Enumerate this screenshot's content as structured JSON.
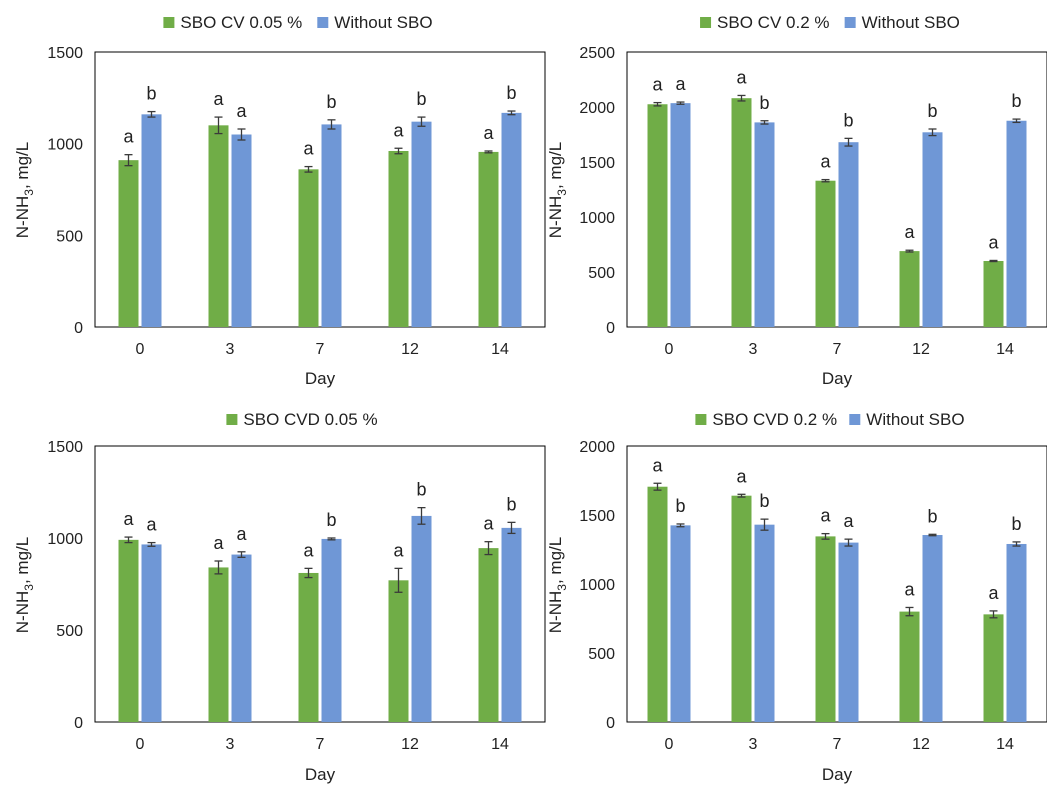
{
  "colors": {
    "green": "#70AD47",
    "blue": "#6F97D6",
    "error_bar": "#3a3a3a",
    "axis": "#000000",
    "text": "#222222"
  },
  "chart_data": [
    {
      "type": "bar",
      "legend_position": "top",
      "categories": [
        "0",
        "3",
        "7",
        "12",
        "14"
      ],
      "xlabel": "Day",
      "ylabel": "N-NH3, mg/L",
      "ylim": [
        0,
        1500
      ],
      "yticks": [
        0,
        500,
        1000,
        1500
      ],
      "grid": false,
      "series": [
        {
          "name": "SBO CV 0.05 %",
          "color": "green",
          "values": [
            910,
            1100,
            860,
            960,
            955
          ],
          "errors": [
            30,
            45,
            15,
            15,
            5
          ],
          "labels": [
            "a",
            "a",
            "a",
            "a",
            "a"
          ]
        },
        {
          "name": "Without SBO",
          "color": "blue",
          "values": [
            1160,
            1050,
            1105,
            1120,
            1168
          ],
          "errors": [
            15,
            30,
            25,
            25,
            10
          ],
          "labels": [
            "b",
            "a",
            "b",
            "b",
            "b"
          ]
        }
      ]
    },
    {
      "type": "bar",
      "legend_position": "top",
      "categories": [
        "0",
        "3",
        "7",
        "12",
        "14"
      ],
      "xlabel": "Day",
      "ylabel": "N-NH3, mg/L",
      "ylim": [
        0,
        2500
      ],
      "yticks": [
        0,
        500,
        1000,
        1500,
        2000,
        2500
      ],
      "grid": false,
      "series": [
        {
          "name": "SBO CV 0.2 %",
          "color": "green",
          "values": [
            2025,
            2080,
            1330,
            690,
            600
          ],
          "errors": [
            15,
            25,
            10,
            8,
            5
          ],
          "labels": [
            "a",
            "a",
            "a",
            "a",
            "a"
          ]
        },
        {
          "name": "Without SBO",
          "color": "blue",
          "values": [
            2035,
            1860,
            1680,
            1770,
            1875
          ],
          "errors": [
            10,
            15,
            35,
            30,
            15
          ],
          "labels": [
            "a",
            "b",
            "b",
            "b",
            "b"
          ]
        }
      ]
    },
    {
      "type": "bar",
      "legend_position": "top",
      "categories": [
        "0",
        "3",
        "7",
        "12",
        "14"
      ],
      "xlabel": "Day",
      "ylabel": "N-NH3, mg/L",
      "ylim": [
        0,
        1500
      ],
      "yticks": [
        0,
        500,
        1000,
        1500
      ],
      "grid": false,
      "series": [
        {
          "name": "SBO CVD 0.05 %",
          "color": "green",
          "values": [
            990,
            840,
            810,
            770,
            945
          ],
          "errors": [
            15,
            35,
            25,
            65,
            35
          ],
          "labels": [
            "a",
            "a",
            "a",
            "a",
            "a"
          ]
        },
        {
          "name": "",
          "color": "blue",
          "values": [
            965,
            910,
            995,
            1120,
            1055
          ],
          "errors": [
            10,
            15,
            5,
            45,
            30
          ],
          "labels": [
            "a",
            "a",
            "b",
            "b",
            "b"
          ]
        }
      ]
    },
    {
      "type": "bar",
      "legend_position": "top",
      "categories": [
        "0",
        "3",
        "7",
        "12",
        "14"
      ],
      "xlabel": "Day",
      "ylabel": "N-NH3, mg/L",
      "ylim": [
        0,
        2000
      ],
      "yticks": [
        0,
        500,
        1000,
        1500,
        2000
      ],
      "grid": false,
      "series": [
        {
          "name": "SBO CVD 0.2 %",
          "color": "green",
          "values": [
            1705,
            1640,
            1345,
            800,
            780
          ],
          "errors": [
            25,
            10,
            20,
            30,
            25
          ],
          "labels": [
            "a",
            "a",
            "a",
            "a",
            "a"
          ]
        },
        {
          "name": "Without SBO",
          "color": "blue",
          "values": [
            1425,
            1430,
            1300,
            1355,
            1290
          ],
          "errors": [
            10,
            40,
            25,
            5,
            15
          ],
          "labels": [
            "b",
            "b",
            "a",
            "b",
            "b"
          ]
        }
      ]
    }
  ]
}
